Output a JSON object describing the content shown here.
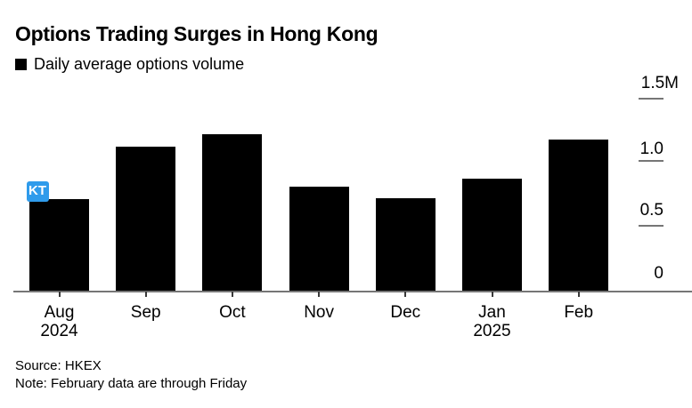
{
  "overlay": {
    "marker_label": "KT",
    "marker_color": "#2f9beb"
  },
  "chart_data": {
    "type": "bar",
    "title": "Options Trading Surges in Hong Kong",
    "series": [
      {
        "name": "Daily average options volume",
        "values": [
          0.72,
          1.13,
          1.23,
          0.82,
          0.73,
          0.88,
          1.19
        ]
      }
    ],
    "categories": [
      [
        "Aug",
        "2024"
      ],
      [
        "Sep"
      ],
      [
        "Oct"
      ],
      [
        "Nov"
      ],
      [
        "Dec"
      ],
      [
        "Jan",
        "2025"
      ],
      [
        "Feb"
      ]
    ],
    "unit": "M",
    "ylim": [
      0,
      1.5
    ],
    "ytick_labels": [
      "1.5M",
      "1.0",
      "0.5",
      "0"
    ],
    "ytick_values": [
      1.5,
      1.0,
      0.5,
      0
    ],
    "value_axis_side": "right",
    "legend_position": "top-left",
    "grid": false,
    "bar_color": "#000000",
    "axis_color": "#767676",
    "source": "Source: HKEX",
    "note": "Note: February data are through Friday"
  }
}
